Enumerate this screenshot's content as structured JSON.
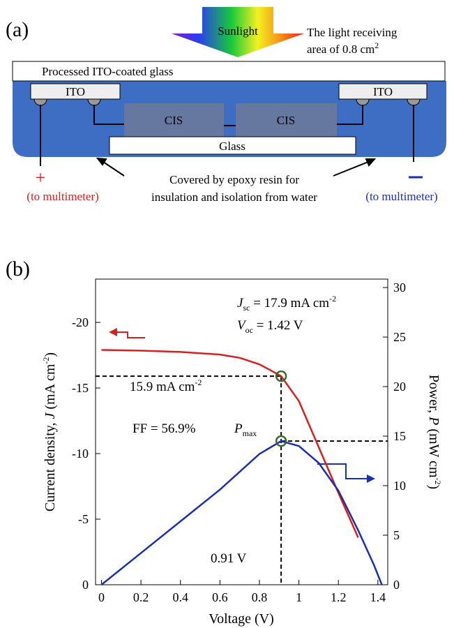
{
  "panel_a": {
    "label": "(a)",
    "sunlight": "Sunlight",
    "area_note": {
      "line1": "The light receiving",
      "line2": "area of 0.8 cm",
      "sup": "2"
    },
    "top_glass": "Processed ITO-coated glass",
    "ito_left": "ITO",
    "ito_right": "ITO",
    "cis_left": "CIS",
    "cis_right": "CIS",
    "bottom_glass": "Glass",
    "plus": "+",
    "plus_note": "(to multimeter)",
    "minus_note": "(to multimeter)",
    "epoxy_note": {
      "line1": "Covered by epoxy resin for",
      "line2": "insulation and isolation from water"
    }
  },
  "chart_data": {
    "type": "line",
    "panel_label": "(b)",
    "x_label": "Voltage (V)",
    "y_label": {
      "pre": "Current density, ",
      "sym": "J",
      "unit": " (mA cm",
      "sup": "-2",
      "post": ")"
    },
    "y2_label": {
      "pre": "Power, ",
      "sym": "P",
      "unit": " (mW cm",
      "sup": "-2",
      "post": ")"
    },
    "xlim": [
      -0.03,
      1.45
    ],
    "xticks": [
      0,
      0.2,
      0.4,
      0.6,
      0.8,
      1,
      1.2,
      1.4
    ],
    "ylim": [
      0,
      -23.3
    ],
    "yticks": [
      0,
      -5,
      -10,
      -15,
      -20
    ],
    "y2lim": [
      0,
      30.85
    ],
    "y2ticks": [
      0,
      5,
      10,
      15,
      20,
      25,
      30
    ],
    "series": [
      {
        "color": "#d62020",
        "x": [
          0,
          0.2,
          0.4,
          0.6,
          0.7,
          0.8,
          0.85,
          0.91,
          1.0,
          1.1,
          1.2,
          1.3
        ],
        "values": [
          -17.9,
          -17.85,
          -17.75,
          -17.55,
          -17.3,
          -16.8,
          -16.4,
          -15.9,
          -14.0,
          -10.5,
          -7.0,
          -3.6
        ]
      },
      {
        "color": "#1a2fb0",
        "axis": "y2",
        "x": [
          0,
          0.2,
          0.4,
          0.6,
          0.8,
          0.91,
          1.0,
          1.1,
          1.2,
          1.3,
          1.38,
          1.42
        ],
        "values": [
          0,
          3.2,
          6.4,
          9.6,
          13.2,
          14.5,
          14.0,
          12.3,
          9.5,
          5.5,
          2.0,
          0
        ]
      }
    ],
    "mpp_voltage": 0.91,
    "mpp_current": -15.9,
    "mpp_power": 14.5,
    "jsc": {
      "sym": "J",
      "sub": "sc",
      "text": " = 17.9 mA cm",
      "sup": "-2"
    },
    "voc": {
      "sym": "V",
      "sub": "oc",
      "text": " = 1.42 V"
    },
    "current_note": {
      "text": "15.9 mA cm",
      "sup": "-2"
    },
    "ff": "FF = 56.9%",
    "pmax": {
      "sym": "P",
      "sub": "max"
    },
    "voltage_note": "0.91 V"
  }
}
